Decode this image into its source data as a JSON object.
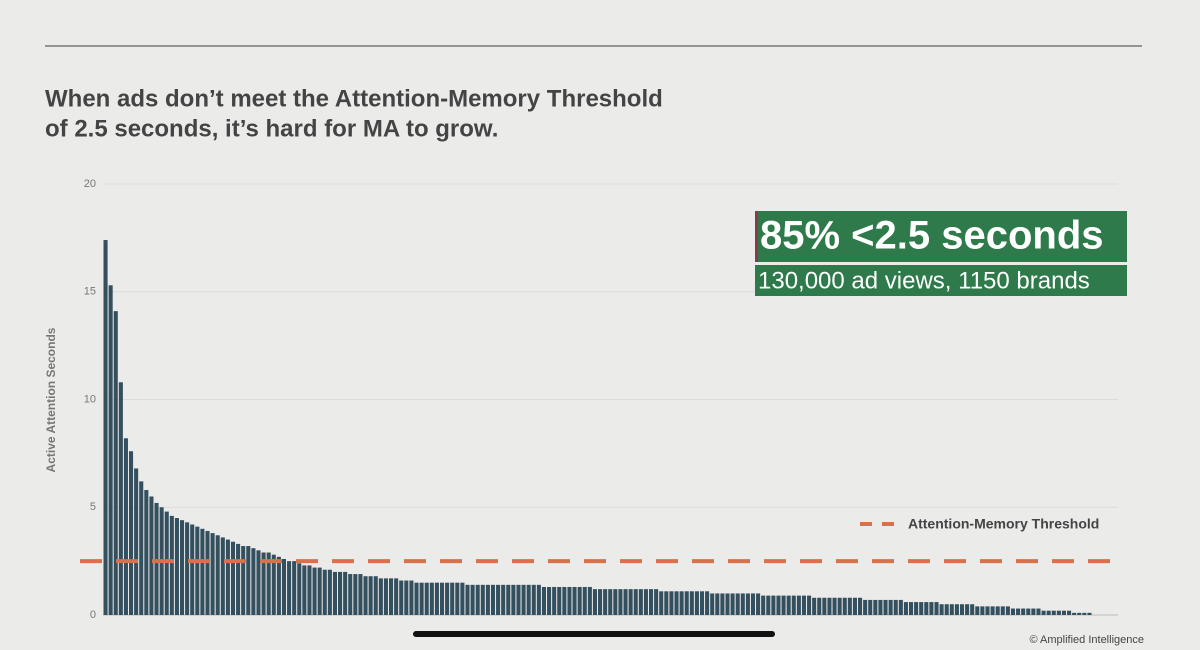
{
  "chart_data": {
    "type": "bar",
    "title": [
      "When ads don’t meet the Attention-Memory Threshold",
      "of 2.5 seconds, it’s hard for MA to grow."
    ],
    "y_label": "Active Attention Seconds",
    "ylim": [
      0,
      20
    ],
    "yticks": [
      0,
      5,
      10,
      15,
      20
    ],
    "grid": true,
    "color": "#34505f",
    "values": [
      17.4,
      15.3,
      14.1,
      10.8,
      8.2,
      7.6,
      6.8,
      6.2,
      5.8,
      5.5,
      5.2,
      5.0,
      4.8,
      4.6,
      4.5,
      4.4,
      4.3,
      4.2,
      4.1,
      4.0,
      3.9,
      3.8,
      3.7,
      3.6,
      3.5,
      3.4,
      3.3,
      3.2,
      3.2,
      3.1,
      3.0,
      2.9,
      2.9,
      2.8,
      2.7,
      2.6,
      2.5,
      2.5,
      2.4,
      2.3,
      2.3,
      2.2,
      2.2,
      2.1,
      2.1,
      2.0,
      2.0,
      2.0,
      1.9,
      1.9,
      1.9,
      1.8,
      1.8,
      1.8,
      1.7,
      1.7,
      1.7,
      1.7,
      1.6,
      1.6,
      1.6,
      1.5,
      1.5,
      1.5,
      1.5,
      1.5,
      1.5,
      1.5,
      1.5,
      1.5,
      1.5,
      1.4,
      1.4,
      1.4,
      1.4,
      1.4,
      1.4,
      1.4,
      1.4,
      1.4,
      1.4,
      1.4,
      1.4,
      1.4,
      1.4,
      1.4,
      1.3,
      1.3,
      1.3,
      1.3,
      1.3,
      1.3,
      1.3,
      1.3,
      1.3,
      1.3,
      1.2,
      1.2,
      1.2,
      1.2,
      1.2,
      1.2,
      1.2,
      1.2,
      1.2,
      1.2,
      1.2,
      1.2,
      1.2,
      1.1,
      1.1,
      1.1,
      1.1,
      1.1,
      1.1,
      1.1,
      1.1,
      1.1,
      1.1,
      1.0,
      1.0,
      1.0,
      1.0,
      1.0,
      1.0,
      1.0,
      1.0,
      1.0,
      1.0,
      0.9,
      0.9,
      0.9,
      0.9,
      0.9,
      0.9,
      0.9,
      0.9,
      0.9,
      0.9,
      0.8,
      0.8,
      0.8,
      0.8,
      0.8,
      0.8,
      0.8,
      0.8,
      0.8,
      0.8,
      0.7,
      0.7,
      0.7,
      0.7,
      0.7,
      0.7,
      0.7,
      0.7,
      0.6,
      0.6,
      0.6,
      0.6,
      0.6,
      0.6,
      0.6,
      0.5,
      0.5,
      0.5,
      0.5,
      0.5,
      0.5,
      0.5,
      0.4,
      0.4,
      0.4,
      0.4,
      0.4,
      0.4,
      0.4,
      0.3,
      0.3,
      0.3,
      0.3,
      0.3,
      0.3,
      0.2,
      0.2,
      0.2,
      0.2,
      0.2,
      0.2,
      0.1,
      0.1,
      0.1,
      0.1
    ],
    "threshold": {
      "name": "Attention-Memory Threshold",
      "value": 2.5,
      "color": "#d9714a"
    },
    "annotation": {
      "headline": "85% <2.5 seconds",
      "subline": "130,000 ad views, 1150 brands",
      "color": "#2e7a4a"
    },
    "credit": "© Amplified Intelligence"
  }
}
